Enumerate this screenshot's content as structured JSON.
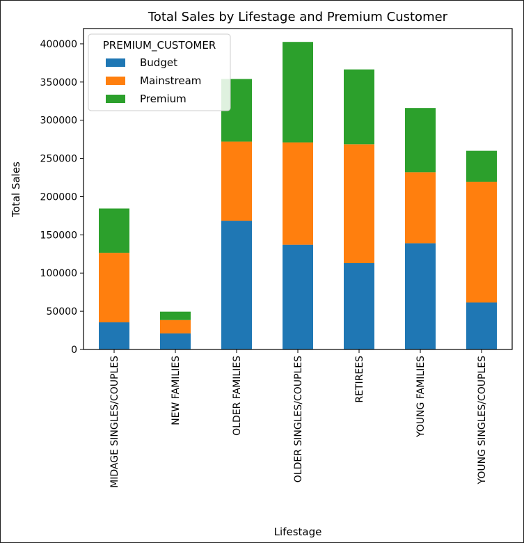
{
  "chart_data": {
    "type": "bar",
    "stacked": true,
    "title": "Total Sales by Lifestage and Premium Customer",
    "xlabel": "Lifestage",
    "ylabel": "Total Sales",
    "ylim": [
      0,
      420000
    ],
    "yticks": [
      0,
      50000,
      100000,
      150000,
      200000,
      250000,
      300000,
      350000,
      400000
    ],
    "categories": [
      "MIDAGE SINGLES/COUPLES",
      "NEW FAMILIES",
      "OLDER FAMILIES",
      "OLDER SINGLES/COUPLES",
      "RETIREES",
      "YOUNG FAMILIES",
      "YOUNG SINGLES/COUPLES"
    ],
    "legend": {
      "title": "PREMIUM_CUSTOMER",
      "placement": "upper-left"
    },
    "grid": false,
    "series": [
      {
        "name": "Budget",
        "color": "#1f77b4",
        "values": [
          35500,
          21000,
          168500,
          137000,
          113000,
          139000,
          61500
        ]
      },
      {
        "name": "Mainstream",
        "color": "#ff7f0e",
        "values": [
          91000,
          17500,
          103500,
          134000,
          155500,
          93000,
          158000
        ]
      },
      {
        "name": "Premium",
        "color": "#2ca02c",
        "values": [
          58000,
          11000,
          82000,
          131500,
          98000,
          84000,
          40500
        ]
      }
    ]
  }
}
